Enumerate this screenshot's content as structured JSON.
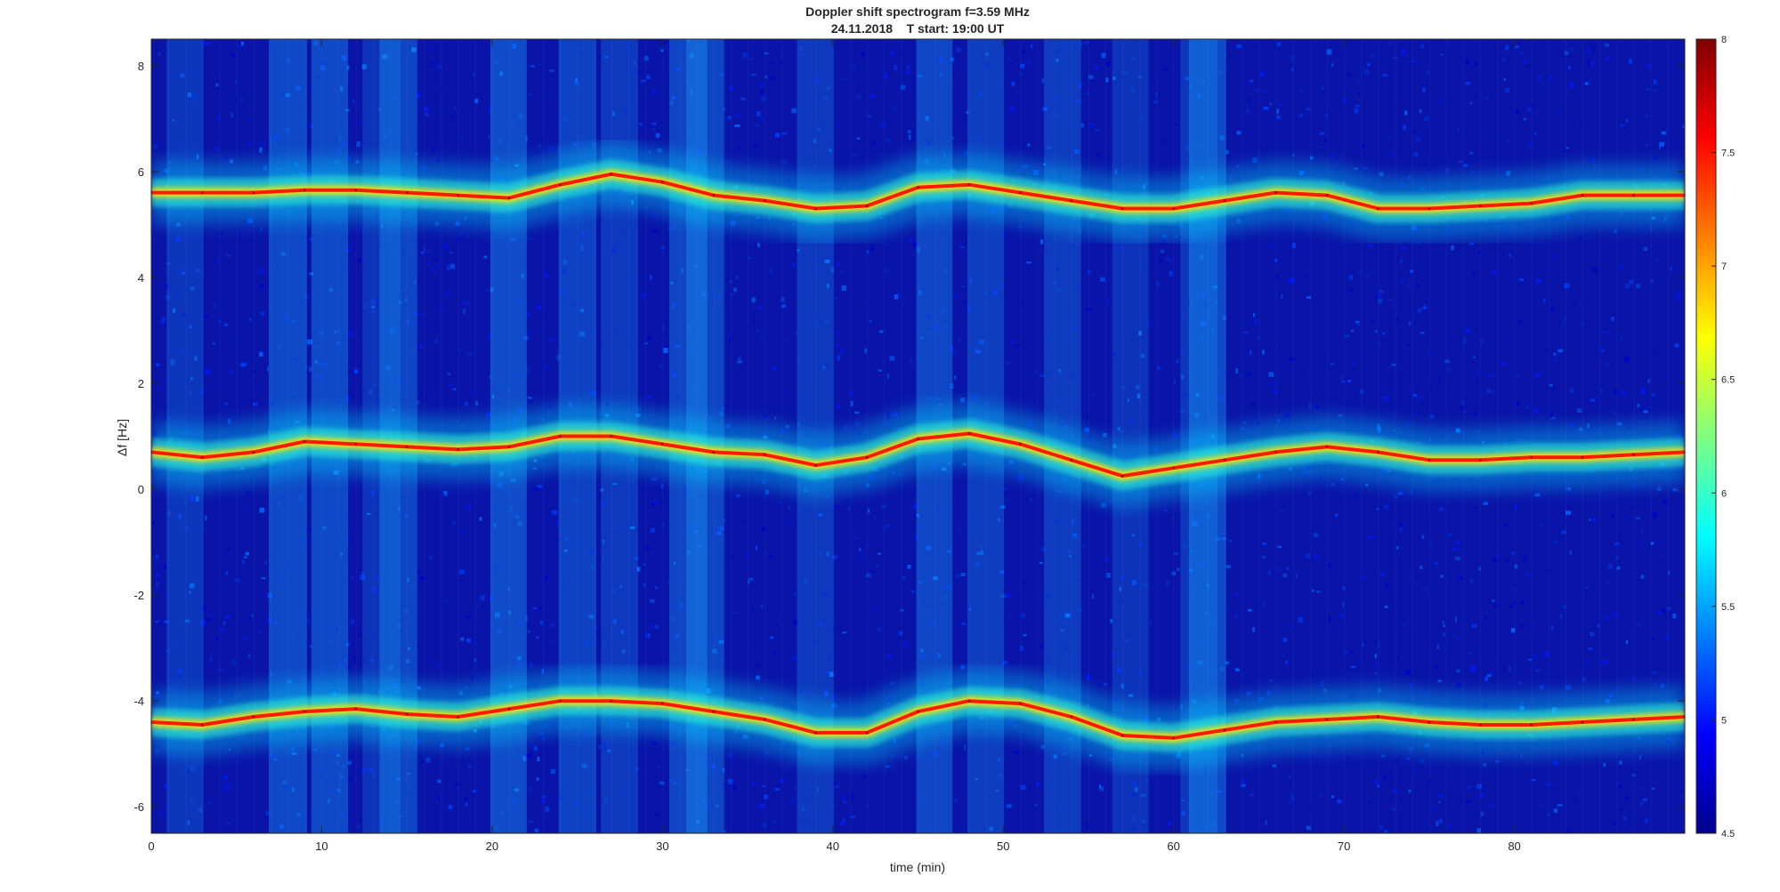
{
  "chart_data": {
    "type": "heatmap",
    "title": "Doppler shift spectrogram f=3.59 MHz",
    "subtitle": "24.11.2018    T start: 19:00 UT",
    "xlabel": "time (min)",
    "ylabel": "Δf [Hz]",
    "xlim": [
      0,
      90
    ],
    "ylim": [
      -6.5,
      8.5
    ],
    "x_ticks": [
      "0",
      "10",
      "20",
      "30",
      "40",
      "50",
      "60",
      "70",
      "80"
    ],
    "y_ticks": [
      "-6",
      "-4",
      "-2",
      "0",
      "2",
      "4",
      "6",
      "8"
    ],
    "x_tick_values": [
      0,
      10,
      20,
      30,
      40,
      50,
      60,
      70,
      80
    ],
    "y_tick_values": [
      -6,
      -4,
      -2,
      0,
      2,
      4,
      6,
      8
    ],
    "colorbar": {
      "range": [
        4.5,
        8
      ],
      "ticks": [
        "4.5",
        "5",
        "5.5",
        "6",
        "6.5",
        "7",
        "7.5",
        "8"
      ],
      "tick_values": [
        4.5,
        5,
        5.5,
        6,
        6.5,
        7,
        7.5,
        8
      ],
      "colormap": "jet"
    },
    "grid": false,
    "series": [
      {
        "x": [
          0,
          3,
          6,
          9,
          12,
          15,
          18,
          21,
          24,
          27,
          30,
          33,
          36,
          39,
          42,
          45,
          48,
          51,
          54,
          57,
          60,
          63,
          66,
          69,
          72,
          75,
          78,
          81,
          84,
          87,
          90
        ],
        "y": [
          5.6,
          5.6,
          5.6,
          5.65,
          5.65,
          5.6,
          5.55,
          5.5,
          5.75,
          5.95,
          5.8,
          5.55,
          5.45,
          5.3,
          5.35,
          5.7,
          5.75,
          5.6,
          5.45,
          5.3,
          5.3,
          5.45,
          5.6,
          5.55,
          5.3,
          5.3,
          5.35,
          5.4,
          5.55,
          5.55,
          5.55
        ]
      },
      {
        "x": [
          0,
          3,
          6,
          9,
          12,
          15,
          18,
          21,
          24,
          27,
          30,
          33,
          36,
          39,
          42,
          45,
          48,
          51,
          54,
          57,
          60,
          63,
          66,
          69,
          72,
          75,
          78,
          81,
          84,
          87,
          90
        ],
        "y": [
          0.7,
          0.6,
          0.7,
          0.9,
          0.85,
          0.8,
          0.75,
          0.8,
          1.0,
          1.0,
          0.85,
          0.7,
          0.65,
          0.45,
          0.6,
          0.95,
          1.05,
          0.85,
          0.55,
          0.25,
          0.4,
          0.55,
          0.7,
          0.8,
          0.7,
          0.55,
          0.55,
          0.6,
          0.6,
          0.65,
          0.7
        ]
      },
      {
        "x": [
          0,
          3,
          6,
          9,
          12,
          15,
          18,
          21,
          24,
          27,
          30,
          33,
          36,
          39,
          42,
          45,
          48,
          51,
          54,
          57,
          60,
          63,
          66,
          69,
          72,
          75,
          78,
          81,
          84,
          87,
          90
        ],
        "y": [
          -4.4,
          -4.45,
          -4.3,
          -4.2,
          -4.15,
          -4.25,
          -4.3,
          -4.15,
          -4.0,
          -4.0,
          -4.05,
          -4.2,
          -4.35,
          -4.6,
          -4.6,
          -4.2,
          -4.0,
          -4.05,
          -4.3,
          -4.65,
          -4.7,
          -4.55,
          -4.4,
          -4.35,
          -4.3,
          -4.4,
          -4.45,
          -4.45,
          -4.4,
          -4.35,
          -4.3
        ]
      }
    ]
  }
}
